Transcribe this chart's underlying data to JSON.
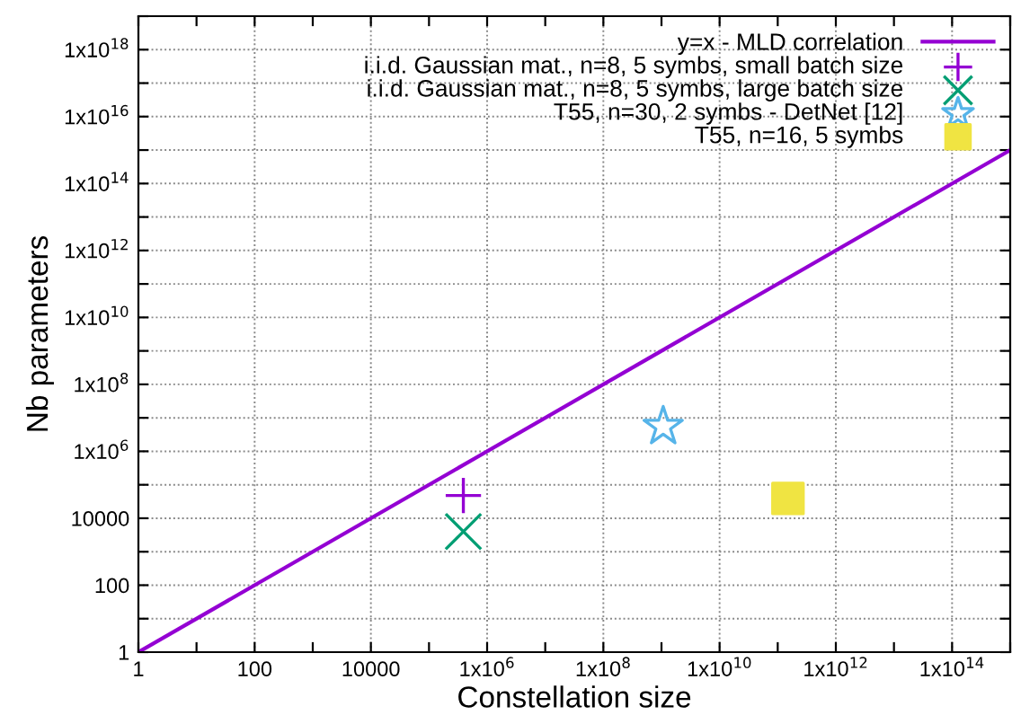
{
  "chart_data": {
    "type": "scatter",
    "xlabel": "Constellation size",
    "ylabel": "Nb parameters",
    "log": "xy",
    "grid": true,
    "legend": "top right",
    "xlim": [
      1,
      1000000000000000.0
    ],
    "ylim": [
      1,
      1e+19
    ],
    "xticks": [
      1,
      {
        "value": 10,
        "label": null
      },
      100,
      {
        "value": 1000,
        "label": null
      },
      10000,
      {
        "value": 100000,
        "label": null
      },
      {
        "value": 1000000.0,
        "label": "1x10$^{6}$"
      },
      {
        "value": 10000000.0,
        "label": null
      },
      {
        "value": 100000000.0,
        "label": "1x10$^{8}$"
      },
      {
        "value": 1000000000.0,
        "label": null
      },
      {
        "value": 10000000000.0,
        "label": "1x10$^{10}$"
      },
      {
        "value": 100000000000.0,
        "label": null
      },
      {
        "value": 1000000000000.0,
        "label": "1x10$^{12}$"
      },
      {
        "value": 10000000000000.0,
        "label": null
      },
      {
        "value": 100000000000000.0,
        "label": "1x10$^{14}$"
      },
      {
        "value": 1000000000000000.0,
        "label": null
      }
    ],
    "yticks": [
      1,
      {
        "value": 10,
        "label": null
      },
      100,
      {
        "value": 1000,
        "label": null
      },
      10000,
      {
        "value": 100000,
        "label": null
      },
      {
        "value": 1000000.0,
        "label": "1x10$^{6}$"
      },
      {
        "value": 10000000.0,
        "label": null
      },
      {
        "value": 100000000.0,
        "label": "1x10$^{8}$"
      },
      {
        "value": 1000000000.0,
        "label": null
      },
      {
        "value": 10000000000.0,
        "label": "1x10$^{10}$"
      },
      {
        "value": 100000000000.0,
        "label": null
      },
      {
        "value": 1000000000000.0,
        "label": "1x10$^{12}$"
      },
      {
        "value": 10000000000000.0,
        "label": null
      },
      {
        "value": 100000000000000.0,
        "label": "1x10$^{14}$"
      },
      {
        "value": 1000000000000000.0,
        "label": null
      },
      {
        "value": 1e+16,
        "label": "1x10$^{16}$"
      },
      {
        "value": 1e+17,
        "label": null
      },
      {
        "value": 1e+18,
        "label": "1x10$^{18}$"
      },
      {
        "value": 1e+19,
        "label": null
      }
    ],
    "series": [
      {
        "name": "y=x - MLD correlation",
        "type": "line",
        "color": "#9400d3",
        "marker": "none",
        "line_style": "solid",
        "x": [
          1,
          1000000000000000.0
        ],
        "values": [
          1,
          1000000000000000.0
        ]
      },
      {
        "name": "i.i.d. Gaussian mat., n=8, 5 symbs, small batch size",
        "color": "#9400d3",
        "marker": "plus",
        "x": [
          390000
        ],
        "values": [
          48000
        ]
      },
      {
        "name": "i.i.d. Gaussian mat., n=8, 5 symbs, large batch size",
        "color": "#009e73",
        "marker": "cross",
        "x": [
          390000
        ],
        "values": [
          4000
        ]
      },
      {
        "name": "T55, n=30, 2 symbs - DetNet [12]",
        "color": "#56b4e9",
        "marker": "star",
        "x": [
          1070000000.0
        ],
        "values": [
          5500000
        ]
      },
      {
        "name": "T55, n=16, 5 symbs",
        "color": "#f0e442",
        "marker": "square",
        "x": [
          150000000000.0
        ],
        "values": [
          39000
        ]
      }
    ]
  }
}
